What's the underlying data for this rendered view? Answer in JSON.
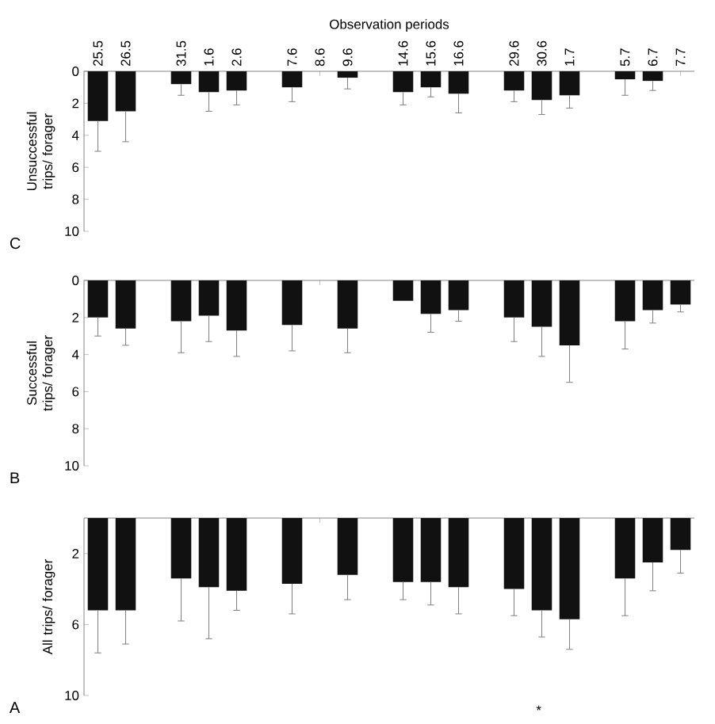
{
  "chart_data": [
    {
      "type": "bar",
      "xlabel": "Observation periods",
      "ylabel": "Unsuccessful trips/ forager",
      "color": "#111111",
      "categories": [
        "25.5",
        "26.5",
        null,
        "31.5",
        "1.6",
        "2.6",
        null,
        "7.6",
        "8.6",
        "9.6",
        null,
        "14.6",
        "15.6",
        "16.6",
        null,
        "29.6",
        "30.6",
        "1.7",
        null,
        "5.7",
        "6.7",
        "7.7"
      ],
      "values": [
        3.1,
        2.5,
        null,
        0.8,
        1.3,
        1.2,
        null,
        1.0,
        0,
        0.4,
        null,
        1.3,
        1.0,
        1.4,
        null,
        1.2,
        1.8,
        1.5,
        null,
        0.5,
        0.6,
        0
      ],
      "errors": [
        [
          3.1,
          5.0
        ],
        [
          2.5,
          4.4
        ],
        null,
        [
          0.8,
          1.5
        ],
        [
          1.3,
          2.5
        ],
        [
          1.2,
          2.1
        ],
        null,
        [
          1.0,
          1.9
        ],
        null,
        [
          0.4,
          1.1
        ],
        null,
        [
          1.3,
          2.1
        ],
        [
          1.0,
          1.6
        ],
        [
          1.4,
          2.6
        ],
        null,
        [
          1.2,
          1.9
        ],
        [
          1.8,
          2.7
        ],
        [
          1.5,
          2.3
        ],
        null,
        [
          0.5,
          1.5
        ],
        [
          0.6,
          1.2
        ],
        null
      ],
      "ylim": [
        10,
        0
      ],
      "yticks": [
        0,
        2,
        4,
        6,
        8,
        10
      ],
      "annotations": [
        "C"
      ]
    },
    {
      "type": "bar",
      "ylabel": "Successful trips/ forager",
      "color": "#111111",
      "tick_labels": "y",
      "categories": [
        "25.5",
        "26.5",
        null,
        "31.5",
        "1.6",
        "2.6",
        null,
        "7.6",
        "8.6",
        "9.6",
        null,
        "14.6",
        "15.6",
        "16.6",
        null,
        "29.6",
        "30.6",
        "1.7",
        null,
        "5.7",
        "6.7",
        "7.7"
      ],
      "values": [
        2.0,
        2.6,
        null,
        2.2,
        1.9,
        2.7,
        null,
        2.4,
        0,
        2.6,
        null,
        1.1,
        1.8,
        1.6,
        null,
        2.0,
        2.5,
        3.5,
        null,
        2.2,
        1.6,
        1.3
      ],
      "errors": [
        [
          2.0,
          3.0
        ],
        [
          2.6,
          3.5
        ],
        null,
        [
          2.2,
          3.9
        ],
        [
          1.9,
          3.3
        ],
        [
          2.7,
          4.1
        ],
        null,
        [
          2.4,
          3.8
        ],
        null,
        [
          2.6,
          3.9
        ],
        null,
        null,
        [
          1.8,
          2.8
        ],
        [
          1.6,
          2.2
        ],
        null,
        [
          2.0,
          3.3
        ],
        [
          2.5,
          4.1
        ],
        [
          3.5,
          5.5
        ],
        null,
        [
          2.2,
          3.7
        ],
        [
          1.6,
          2.3
        ],
        [
          1.3,
          1.7
        ]
      ],
      "ylim": [
        10,
        0
      ],
      "yticks": [
        0,
        2,
        4,
        6,
        8,
        10
      ],
      "annotations": [
        "B"
      ]
    },
    {
      "type": "bar",
      "ylabel": "All trips/ forager",
      "color": "#111111",
      "tick_labels": "y",
      "categories": [
        "25.5",
        "26.5",
        null,
        "31.5",
        "1.6",
        "2.6",
        null,
        "7.6",
        "8.6",
        "9.6",
        null,
        "14.6",
        "15.6",
        "16.6",
        null,
        "29.6",
        "30.6",
        "1.7",
        null,
        "5.7",
        "6.7",
        "7.7"
      ],
      "values": [
        5.2,
        5.2,
        null,
        3.4,
        3.9,
        4.1,
        null,
        3.7,
        0,
        3.2,
        null,
        3.6,
        3.6,
        3.9,
        null,
        4.0,
        5.2,
        5.7,
        null,
        3.4,
        2.5,
        1.8
      ],
      "errors": [
        [
          5.2,
          7.6
        ],
        [
          5.2,
          7.1
        ],
        null,
        [
          3.4,
          5.8
        ],
        [
          3.9,
          6.8
        ],
        [
          4.1,
          5.2
        ],
        null,
        [
          3.7,
          5.4
        ],
        null,
        [
          3.2,
          4.6
        ],
        null,
        [
          3.6,
          4.6
        ],
        [
          3.6,
          4.9
        ],
        [
          3.9,
          5.4
        ],
        null,
        [
          4.0,
          5.5
        ],
        [
          5.2,
          6.7
        ],
        [
          5.7,
          7.4
        ],
        null,
        [
          3.4,
          5.5
        ],
        [
          2.5,
          4.1
        ],
        [
          1.8,
          3.1
        ]
      ],
      "ylim": [
        10,
        0
      ],
      "yticks": [
        2,
        6,
        10
      ],
      "annotations": [
        "A",
        "*"
      ]
    }
  ]
}
